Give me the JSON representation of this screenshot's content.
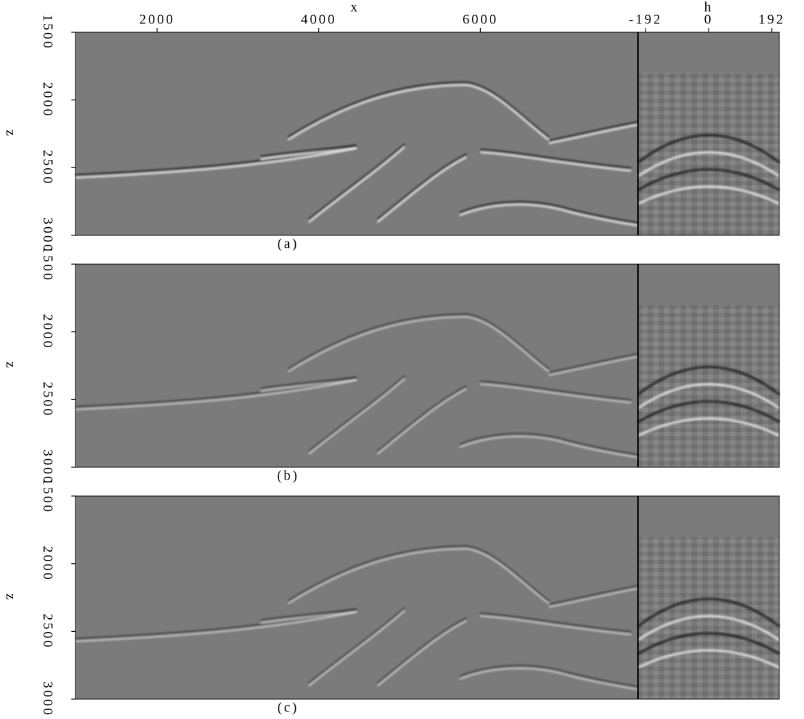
{
  "chart_data": [
    {
      "type": "image",
      "caption": "(a)",
      "xlabel": "x",
      "x2label": "h",
      "ylabel": "z",
      "xlim": [
        990,
        7950
      ],
      "xticks": [
        2000,
        4000,
        6000
      ],
      "hlim": [
        -215,
        215
      ],
      "hticks": [
        -192,
        0,
        192
      ],
      "ylim": [
        1500,
        3000
      ],
      "yticks": [
        1500,
        2000,
        2500,
        3000
      ]
    },
    {
      "type": "image",
      "caption": "(b)",
      "ylabel": "z",
      "ylim": [
        1500,
        3000
      ],
      "yticks": [
        1500,
        2000,
        2500,
        3000
      ]
    },
    {
      "type": "image",
      "caption": "(c)",
      "ylabel": "z",
      "ylim": [
        1500,
        3000
      ],
      "yticks": [
        1500,
        2000,
        2500,
        3000
      ]
    }
  ]
}
